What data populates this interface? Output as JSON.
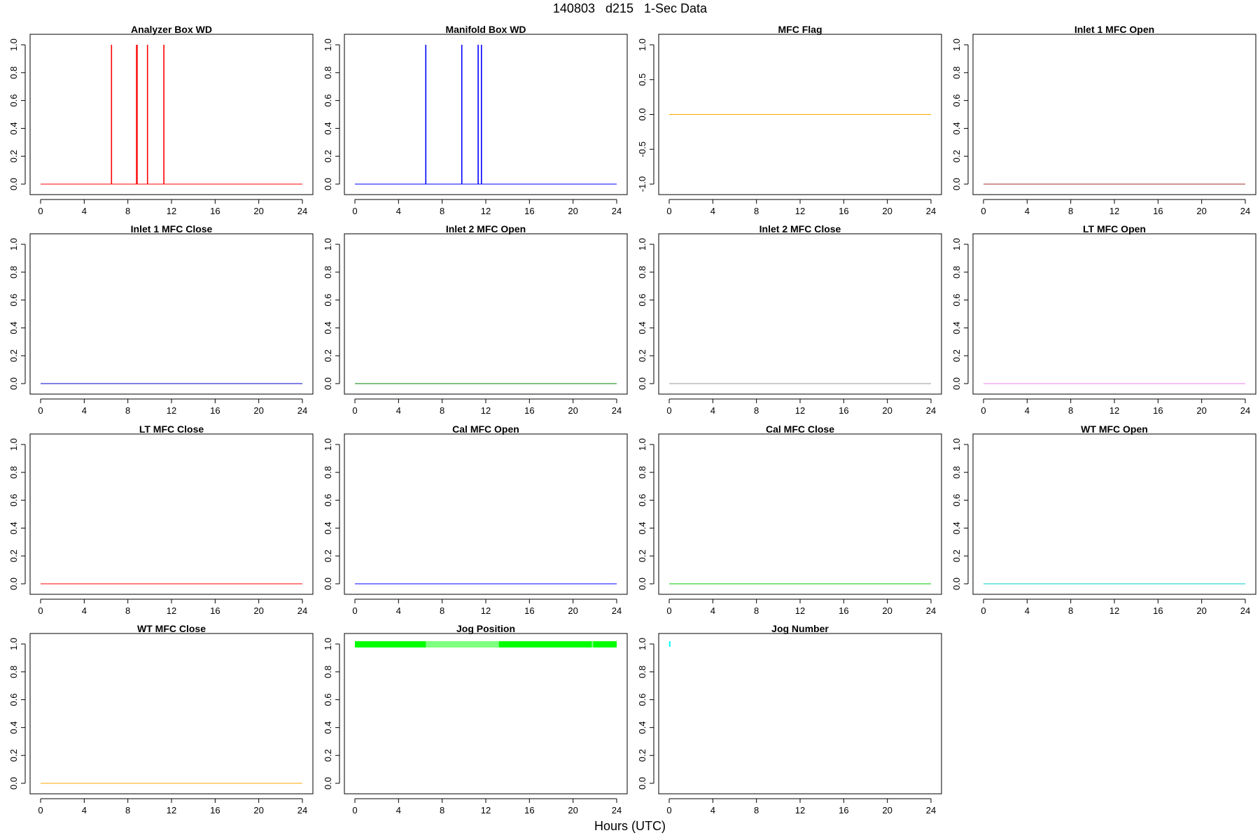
{
  "title": "140803   d215   1-Sec Data",
  "xlabel": "Hours (UTC)",
  "chart_data": [
    {
      "type": "line",
      "title": "Analyzer Box WD",
      "color": "#ff0000",
      "xlim": [
        0,
        24
      ],
      "ylim": [
        0,
        1
      ],
      "x_ticks": [
        0,
        4,
        8,
        12,
        16,
        20,
        24
      ],
      "y_ticks": [
        0.0,
        0.2,
        0.4,
        0.6,
        0.8,
        1.0
      ],
      "y_tick_labels": [
        "0.0",
        "0.2",
        "0.4",
        "0.6",
        "0.8",
        "1.0"
      ],
      "baseline": 0,
      "spikes": [
        6.5,
        8.8,
        8.85,
        9.8,
        11.3
      ]
    },
    {
      "type": "line",
      "title": "Manifold Box WD",
      "color": "#0000ff",
      "xlim": [
        0,
        24
      ],
      "ylim": [
        0,
        1
      ],
      "x_ticks": [
        0,
        4,
        8,
        12,
        16,
        20,
        24
      ],
      "y_ticks": [
        0.0,
        0.2,
        0.4,
        0.6,
        0.8,
        1.0
      ],
      "y_tick_labels": [
        "0.0",
        "0.2",
        "0.4",
        "0.6",
        "0.8",
        "1.0"
      ],
      "baseline": 0,
      "spikes": [
        6.5,
        9.8,
        11.3,
        11.6
      ]
    },
    {
      "type": "line",
      "title": "MFC Flag",
      "color": "#ffa500",
      "xlim": [
        0,
        24
      ],
      "ylim": [
        -1,
        1
      ],
      "x_ticks": [
        0,
        4,
        8,
        12,
        16,
        20,
        24
      ],
      "y_ticks": [
        -1.0,
        -0.5,
        0.0,
        0.5,
        1.0
      ],
      "y_tick_labels": [
        "-1.0",
        "-0.5",
        "0.0",
        "0.5",
        "1.0"
      ],
      "baseline": 0,
      "spikes": []
    },
    {
      "type": "line",
      "title": "Inlet 1 MFC Open",
      "color": "#a52a2a",
      "xlim": [
        0,
        24
      ],
      "ylim": [
        0,
        1
      ],
      "x_ticks": [
        0,
        4,
        8,
        12,
        16,
        20,
        24
      ],
      "y_ticks": [
        0.0,
        0.2,
        0.4,
        0.6,
        0.8,
        1.0
      ],
      "y_tick_labels": [
        "0.0",
        "0.2",
        "0.4",
        "0.6",
        "0.8",
        "1.0"
      ],
      "baseline": 0,
      "spikes": []
    },
    {
      "type": "line",
      "title": "Inlet 1 MFC Close",
      "color": "#0000cd",
      "xlim": [
        0,
        24
      ],
      "ylim": [
        0,
        1
      ],
      "x_ticks": [
        0,
        4,
        8,
        12,
        16,
        20,
        24
      ],
      "y_ticks": [
        0.0,
        0.2,
        0.4,
        0.6,
        0.8,
        1.0
      ],
      "y_tick_labels": [
        "0.0",
        "0.2",
        "0.4",
        "0.6",
        "0.8",
        "1.0"
      ],
      "baseline": 0,
      "spikes": []
    },
    {
      "type": "line",
      "title": "Inlet 2 MFC Open",
      "color": "#008000",
      "xlim": [
        0,
        24
      ],
      "ylim": [
        0,
        1
      ],
      "x_ticks": [
        0,
        4,
        8,
        12,
        16,
        20,
        24
      ],
      "y_ticks": [
        0.0,
        0.2,
        0.4,
        0.6,
        0.8,
        1.0
      ],
      "y_tick_labels": [
        "0.0",
        "0.2",
        "0.4",
        "0.6",
        "0.8",
        "1.0"
      ],
      "baseline": 0,
      "spikes": []
    },
    {
      "type": "line",
      "title": "Inlet 2 MFC Close",
      "color": "#999999",
      "xlim": [
        0,
        24
      ],
      "ylim": [
        0,
        1
      ],
      "x_ticks": [
        0,
        4,
        8,
        12,
        16,
        20,
        24
      ],
      "y_ticks": [
        0.0,
        0.2,
        0.4,
        0.6,
        0.8,
        1.0
      ],
      "y_tick_labels": [
        "0.0",
        "0.2",
        "0.4",
        "0.6",
        "0.8",
        "1.0"
      ],
      "baseline": 0,
      "spikes": []
    },
    {
      "type": "line",
      "title": "LT MFC Open",
      "color": "#ee82ee",
      "xlim": [
        0,
        24
      ],
      "ylim": [
        0,
        1
      ],
      "x_ticks": [
        0,
        4,
        8,
        12,
        16,
        20,
        24
      ],
      "y_ticks": [
        0.0,
        0.2,
        0.4,
        0.6,
        0.8,
        1.0
      ],
      "y_tick_labels": [
        "0.0",
        "0.2",
        "0.4",
        "0.6",
        "0.8",
        "1.0"
      ],
      "baseline": 0,
      "spikes": []
    },
    {
      "type": "line",
      "title": "LT MFC Close",
      "color": "#ff0000",
      "xlim": [
        0,
        24
      ],
      "ylim": [
        0,
        1
      ],
      "x_ticks": [
        0,
        4,
        8,
        12,
        16,
        20,
        24
      ],
      "y_ticks": [
        0.0,
        0.2,
        0.4,
        0.6,
        0.8,
        1.0
      ],
      "y_tick_labels": [
        "0.0",
        "0.2",
        "0.4",
        "0.6",
        "0.8",
        "1.0"
      ],
      "baseline": 0,
      "spikes": []
    },
    {
      "type": "line",
      "title": "Cal MFC Open",
      "color": "#0000ff",
      "xlim": [
        0,
        24
      ],
      "ylim": [
        0,
        1
      ],
      "x_ticks": [
        0,
        4,
        8,
        12,
        16,
        20,
        24
      ],
      "y_ticks": [
        0.0,
        0.2,
        0.4,
        0.6,
        0.8,
        1.0
      ],
      "y_tick_labels": [
        "0.0",
        "0.2",
        "0.4",
        "0.6",
        "0.8",
        "1.0"
      ],
      "baseline": 0,
      "spikes": []
    },
    {
      "type": "line",
      "title": "Cal MFC Close",
      "color": "#00cc00",
      "xlim": [
        0,
        24
      ],
      "ylim": [
        0,
        1
      ],
      "x_ticks": [
        0,
        4,
        8,
        12,
        16,
        20,
        24
      ],
      "y_ticks": [
        0.0,
        0.2,
        0.4,
        0.6,
        0.8,
        1.0
      ],
      "y_tick_labels": [
        "0.0",
        "0.2",
        "0.4",
        "0.6",
        "0.8",
        "1.0"
      ],
      "baseline": 0,
      "spikes": []
    },
    {
      "type": "line",
      "title": "WT MFC Open",
      "color": "#00cccc",
      "xlim": [
        0,
        24
      ],
      "ylim": [
        0,
        1
      ],
      "x_ticks": [
        0,
        4,
        8,
        12,
        16,
        20,
        24
      ],
      "y_ticks": [
        0.0,
        0.2,
        0.4,
        0.6,
        0.8,
        1.0
      ],
      "y_tick_labels": [
        "0.0",
        "0.2",
        "0.4",
        "0.6",
        "0.8",
        "1.0"
      ],
      "baseline": 0,
      "spikes": []
    },
    {
      "type": "line",
      "title": "WT MFC Close",
      "color": "#ffa500",
      "xlim": [
        0,
        24
      ],
      "ylim": [
        0,
        1
      ],
      "x_ticks": [
        0,
        4,
        8,
        12,
        16,
        20,
        24
      ],
      "y_ticks": [
        0.0,
        0.2,
        0.4,
        0.6,
        0.8,
        1.0
      ],
      "y_tick_labels": [
        "0.0",
        "0.2",
        "0.4",
        "0.6",
        "0.8",
        "1.0"
      ],
      "baseline": 0,
      "spikes": []
    },
    {
      "type": "area",
      "title": "Jog Position",
      "color": "#00ff00",
      "xlim": [
        0,
        24
      ],
      "ylim": [
        0,
        1
      ],
      "x_ticks": [
        0,
        4,
        8,
        12,
        16,
        20,
        24
      ],
      "y_ticks": [
        0.0,
        0.2,
        0.4,
        0.6,
        0.8,
        1.0
      ],
      "y_tick_labels": [
        "0.0",
        "0.2",
        "0.4",
        "0.6",
        "0.8",
        "1.0"
      ],
      "band": {
        "from": 0,
        "to": 24,
        "ymin": 0.975,
        "ymax": 1.02
      },
      "light_segments": [
        [
          6.5,
          13.2
        ],
        [
          21.7,
          21.85
        ]
      ],
      "light_color": "#aaffaa"
    },
    {
      "type": "line",
      "title": "Jog Number",
      "color": "#00ffff",
      "xlim": [
        0,
        24
      ],
      "ylim": [
        0,
        1
      ],
      "x_ticks": [
        0,
        4,
        8,
        12,
        16,
        20,
        24
      ],
      "y_ticks": [
        0.0,
        0.2,
        0.4,
        0.6,
        0.8,
        1.0
      ],
      "y_tick_labels": [
        "0.0",
        "0.2",
        "0.4",
        "0.6",
        "0.8",
        "1.0"
      ],
      "point_segment": {
        "x": 0.05,
        "y0": 0.98,
        "y1": 1.02
      }
    }
  ]
}
